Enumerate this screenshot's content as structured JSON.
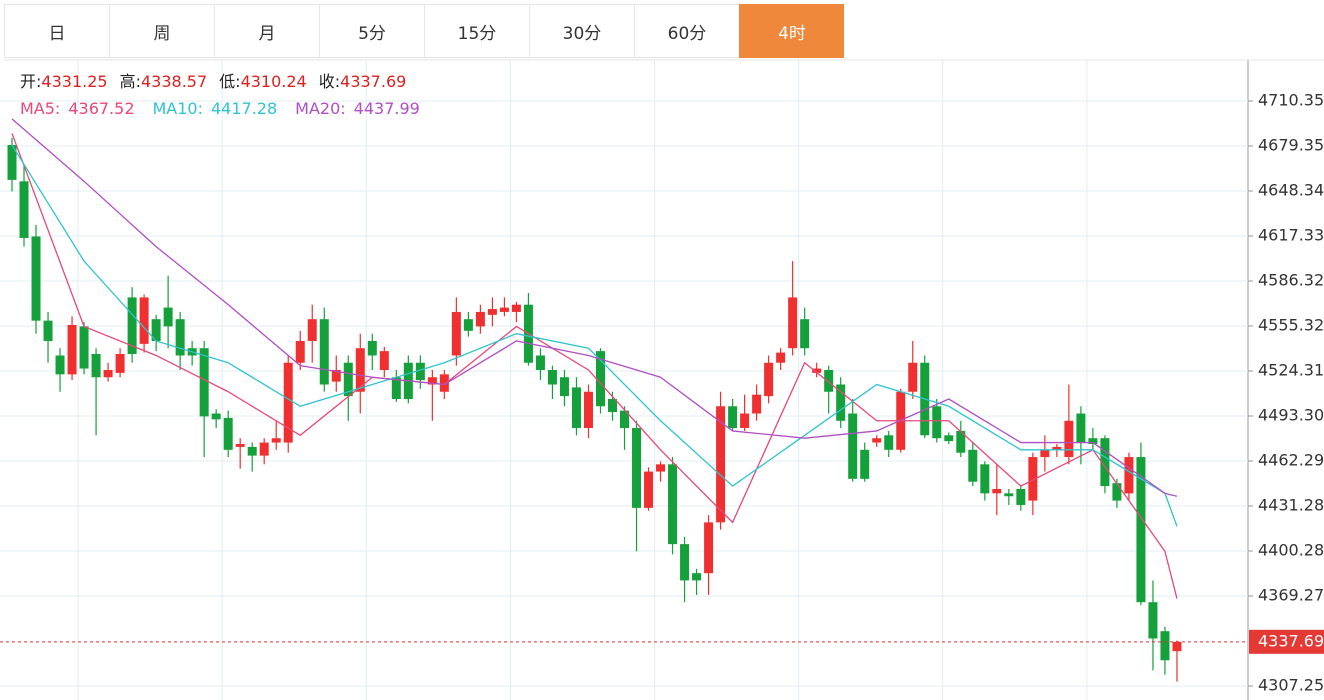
{
  "tabs": [
    "日",
    "周",
    "月",
    "5分",
    "15分",
    "30分",
    "60分",
    "4时"
  ],
  "active_tab": 7,
  "chart_data": {
    "type": "candlestick",
    "ohlc_labels": [
      "开:",
      "高:",
      "低:",
      "收:"
    ],
    "up_color": "#f03030",
    "down_color": "#14a03a",
    "ylim": [
      4297.6,
      4738.6
    ],
    "yticks": [
      4307.25,
      4369.27,
      4400.28,
      4431.28,
      4462.29,
      {
        "value": 4493.3,
        "label": "4493.30"
      },
      4524.31,
      4555.32,
      4586.32,
      4617.33,
      4648.34,
      4679.35,
      4710.35
    ],
    "open": [
      4680,
      4655,
      4617,
      4559,
      4535,
      4522,
      4555,
      4536,
      4520,
      4523,
      4575,
      4543,
      4560,
      4568,
      4560,
      4540,
      4540,
      4495,
      4492,
      4472,
      4472,
      4466,
      4475,
      4475,
      4530,
      4545,
      4560,
      4517,
      4530,
      4510,
      4545,
      4525,
      4520,
      4530,
      4530,
      4515,
      4510,
      4535,
      4560,
      4555,
      4563,
      4565,
      4565,
      4570,
      4535,
      4525,
      4520,
      4513,
      4485,
      4538,
      4505,
      4497,
      4485,
      4430,
      4455,
      4460,
      4405,
      4385,
      4385,
      4420,
      4500,
      4485,
      4495,
      4507,
      4530,
      4540,
      4560,
      4523,
      4525,
      4515,
      4495,
      4470,
      4475,
      4480,
      4470,
      4510,
      4530,
      4500,
      4480,
      4483,
      4470,
      4460,
      4440,
      4440,
      4443,
      4435,
      4465,
      4470,
      4465,
      4495,
      4478,
      4478,
      4447,
      4440,
      4465,
      4365,
      4345,
      4331.25
    ],
    "high": [
      4685,
      4665,
      4625,
      4565,
      4540,
      4562,
      4558,
      4540,
      4530,
      4540,
      4582,
      4577,
      4563,
      4590,
      4565,
      4545,
      4545,
      4498,
      4497,
      4478,
      4475,
      4478,
      4490,
      4535,
      4552,
      4570,
      4568,
      4535,
      4535,
      4550,
      4550,
      4541,
      4525,
      4535,
      4535,
      4525,
      4525,
      4575,
      4565,
      4570,
      4575,
      4575,
      4572,
      4578,
      4540,
      4528,
      4525,
      4520,
      4515,
      4540,
      4510,
      4500,
      4490,
      4458,
      4462,
      4465,
      4410,
      4388,
      4425,
      4510,
      4505,
      4508,
      4515,
      4535,
      4540,
      4600,
      4568,
      4530,
      4528,
      4520,
      4505,
      4475,
      4480,
      4483,
      4512,
      4545,
      4535,
      4505,
      4482,
      4490,
      4475,
      4462,
      4460,
      4443,
      4446,
      4468,
      4480,
      4474,
      4515,
      4500,
      4485,
      4480,
      4450,
      4468,
      4475,
      4380,
      4348,
      4338.57
    ],
    "low": [
      4648,
      4610,
      4550,
      4530,
      4510,
      4518,
      4522,
      4480,
      4517,
      4520,
      4530,
      4537,
      4538,
      4540,
      4525,
      4528,
      4465,
      4485,
      4465,
      4457,
      4455,
      4460,
      4470,
      4468,
      4525,
      4530,
      4510,
      4510,
      4490,
      4495,
      4525,
      4520,
      4503,
      4502,
      4512,
      4490,
      4505,
      4528,
      4548,
      4550,
      4555,
      4562,
      4558,
      4528,
      4518,
      4505,
      4500,
      4480,
      4478,
      4495,
      4490,
      4470,
      4400,
      4428,
      4448,
      4398,
      4365,
      4370,
      4370,
      4415,
      4483,
      4483,
      4490,
      4502,
      4525,
      4535,
      4535,
      4520,
      4495,
      4485,
      4448,
      4448,
      4472,
      4465,
      4468,
      4505,
      4478,
      4475,
      4474,
      4465,
      4445,
      4435,
      4425,
      4432,
      4428,
      4425,
      4455,
      4465,
      4460,
      4460,
      4470,
      4440,
      4430,
      4435,
      4363,
      4318,
      4315,
      4310.24
    ],
    "close": [
      4656,
      4616,
      4559,
      4545,
      4522,
      4556,
      4526,
      4520,
      4525,
      4536,
      4536,
      4575,
      4545,
      4555,
      4535,
      4535,
      4493,
      4491,
      4470,
      4474,
      4466,
      4475,
      4478,
      4530,
      4545,
      4560,
      4515,
      4525,
      4507,
      4540,
      4535,
      4538,
      4505,
      4505,
      4518,
      4520,
      4522,
      4565,
      4552,
      4565,
      4567,
      4568,
      4570,
      4530,
      4525,
      4515,
      4507,
      4485,
      4510,
      4500,
      4496,
      4485,
      4430,
      4455,
      4460,
      4405,
      4380,
      4380,
      4420,
      4500,
      4485,
      4495,
      4508,
      4530,
      4537,
      4575,
      4540,
      4526,
      4510,
      4490,
      4450,
      4450,
      4478,
      4470,
      4510,
      4530,
      4480,
      4478,
      4476,
      4468,
      4448,
      4440,
      4443,
      4438,
      4432,
      4465,
      4470,
      4472,
      4490,
      4475,
      4474,
      4445,
      4435,
      4465,
      4365,
      4340,
      4325,
      4337.69
    ],
    "series": [
      {
        "name": "MA5:",
        "color": "#e8487a",
        "x": [
          0,
          6,
          12,
          18,
          24,
          30,
          36,
          42,
          48,
          54,
          60,
          66,
          72,
          78,
          84,
          90,
          96,
          97
        ],
        "values": [
          4688,
          4555,
          4535,
          4510,
          4480,
          4520,
          4515,
          4555,
          4525,
          4470,
          4420,
          4530,
          4490,
          4490,
          4445,
          4470,
          4400,
          4367.52
        ]
      },
      {
        "name": "MA10:",
        "color": "#2ec4cf",
        "x": [
          0,
          6,
          12,
          18,
          24,
          30,
          36,
          42,
          48,
          54,
          60,
          66,
          72,
          78,
          84,
          90,
          96,
          97
        ],
        "values": [
          4680,
          4600,
          4545,
          4530,
          4500,
          4515,
          4530,
          4550,
          4540,
          4490,
          4445,
          4480,
          4515,
          4500,
          4470,
          4470,
          4440,
          4417.28
        ]
      },
      {
        "name": "MA20:",
        "color": "#b04fc4",
        "x": [
          0,
          6,
          12,
          18,
          24,
          30,
          36,
          42,
          48,
          54,
          60,
          66,
          72,
          78,
          84,
          90,
          96,
          97
        ],
        "values": [
          4698,
          4655,
          4610,
          4570,
          4528,
          4520,
          4515,
          4545,
          4535,
          4520,
          4483,
          4478,
          4483,
          4505,
          4475,
          4475,
          4440,
          4437.99
        ]
      }
    ]
  }
}
